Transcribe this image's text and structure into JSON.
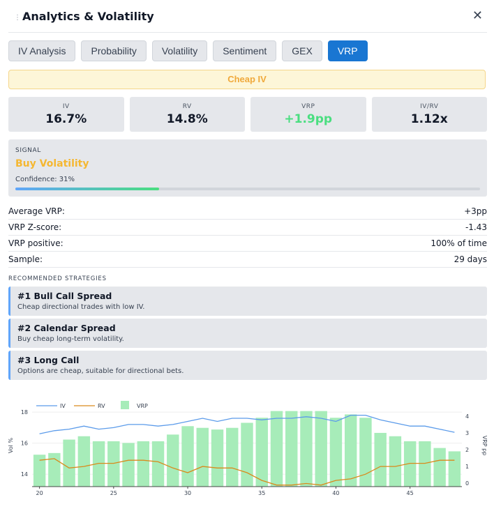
{
  "window": {
    "title": "Analytics & Volatility",
    "close_symbol": "✕",
    "drag_symbol": "⋮⋮"
  },
  "tabs": [
    "IV Analysis",
    "Probability",
    "Volatility",
    "Sentiment",
    "GEX",
    "VRP"
  ],
  "active_tab": "VRP",
  "banner": "Cheap IV",
  "metrics": [
    {
      "label": "IV",
      "value": "16.7%"
    },
    {
      "label": "RV",
      "value": "14.8%"
    },
    {
      "label": "VRP",
      "value": "+1.9pp"
    },
    {
      "label": "IV/RV",
      "value": "1.12x"
    }
  ],
  "signal": {
    "label": "SIGNAL",
    "value": "Buy Volatility",
    "confidence_text": "Confidence: 31%",
    "confidence": 0.31
  },
  "stats": [
    {
      "label": "Average VRP:",
      "value": "+3pp"
    },
    {
      "label": "VRP Z-score:",
      "value": "-1.43"
    },
    {
      "label": "VRP positive:",
      "value": "100% of time"
    },
    {
      "label": "Sample:",
      "value": "29 days"
    }
  ],
  "strategies_title": "RECOMMENDED STRATEGIES",
  "strategies": [
    {
      "name": "#1 Bull Call Spread",
      "desc": "Cheap directional trades with low IV."
    },
    {
      "name": "#2 Calendar Spread",
      "desc": "Buy cheap long-term volatility."
    },
    {
      "name": "#3 Long Call",
      "desc": "Options are cheap, suitable for directional bets."
    }
  ],
  "colors": {
    "iv": "#5b9bea",
    "rv": "#d98a1c",
    "vrp": "#a7ecb9",
    "accent": "#1976d2",
    "signal": "#f5b731"
  },
  "chart_data": {
    "type": "bar",
    "x": [
      20,
      21,
      22,
      23,
      24,
      25,
      26,
      27,
      28,
      29,
      30,
      31,
      32,
      33,
      34,
      35,
      36,
      37,
      38,
      39,
      40,
      41,
      42,
      43,
      44,
      45,
      46,
      47,
      48
    ],
    "series": [
      {
        "name": "IV",
        "type": "line",
        "axis": "left",
        "values": [
          16.6,
          16.8,
          16.9,
          17.1,
          16.9,
          17.0,
          17.2,
          17.2,
          17.1,
          17.2,
          17.4,
          17.6,
          17.4,
          17.6,
          17.6,
          17.5,
          17.6,
          17.6,
          17.7,
          17.6,
          17.4,
          17.8,
          17.8,
          17.5,
          17.3,
          17.1,
          17.1,
          16.9,
          16.7
        ]
      },
      {
        "name": "RV",
        "type": "line",
        "axis": "left",
        "values": [
          14.9,
          15.0,
          14.4,
          14.5,
          14.7,
          14.7,
          14.9,
          14.9,
          14.8,
          14.4,
          14.1,
          14.5,
          14.4,
          14.4,
          14.1,
          13.6,
          13.3,
          13.3,
          13.4,
          13.3,
          13.6,
          13.7,
          14.0,
          14.5,
          14.5,
          14.7,
          14.7,
          14.9,
          14.9
        ]
      },
      {
        "name": "VRP",
        "type": "bar",
        "axis": "right",
        "values": [
          1.7,
          1.8,
          2.6,
          2.8,
          2.5,
          2.5,
          2.4,
          2.5,
          2.5,
          2.9,
          3.4,
          3.3,
          3.2,
          3.3,
          3.6,
          3.9,
          4.3,
          4.3,
          4.3,
          4.3,
          3.9,
          4.1,
          3.9,
          3.0,
          2.8,
          2.5,
          2.5,
          2.1,
          1.9
        ]
      }
    ],
    "y_left": {
      "label": "Vol %",
      "ticks": [
        14,
        16,
        18
      ],
      "range": [
        13.2,
        18.5
      ]
    },
    "y_right": {
      "label": "VRP pp",
      "ticks": [
        0,
        1,
        2,
        3,
        4
      ],
      "range": [
        -0.2,
        4.7
      ]
    },
    "x_ticks": [
      20,
      25,
      30,
      35,
      40,
      45
    ],
    "x_range": [
      19.5,
      48.5
    ],
    "legend": "top-left"
  }
}
